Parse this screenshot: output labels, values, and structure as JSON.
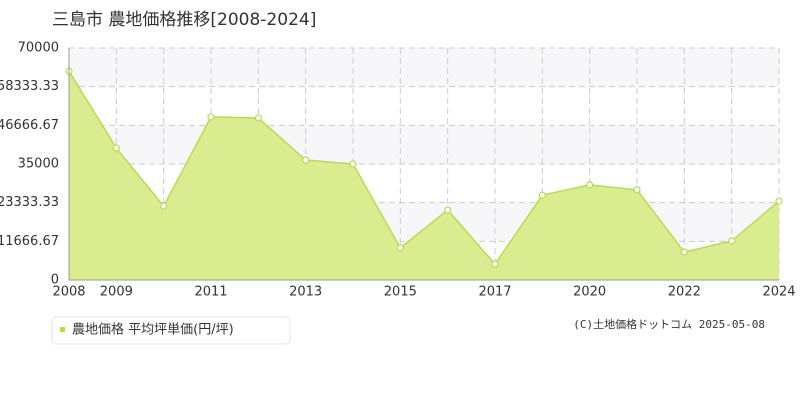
{
  "chart_data": {
    "type": "area",
    "title": "三島市 農地価格推移[2008-2024]",
    "categories": [
      "2008",
      "2009",
      null,
      "2011",
      null,
      "2013",
      null,
      "2015",
      null,
      "2017",
      null,
      "2020",
      null,
      "2022",
      null,
      "2024"
    ],
    "series": [
      {
        "name": "農地価格 平均坪単価(円/坪)",
        "color": "#b5de4a",
        "values": [
          63000,
          39800,
          22300,
          49200,
          48900,
          36200,
          35000,
          9700,
          21100,
          4800,
          25600,
          28700,
          27200,
          8400,
          11800,
          23800
        ]
      }
    ],
    "ylim": [
      0,
      70000
    ],
    "yticks": [
      0,
      11666.67,
      23333.33,
      35000,
      46666.67,
      58333.33,
      70000
    ],
    "grid": true,
    "copyright": "(C)土地価格ドットコム 2025-05-08"
  }
}
